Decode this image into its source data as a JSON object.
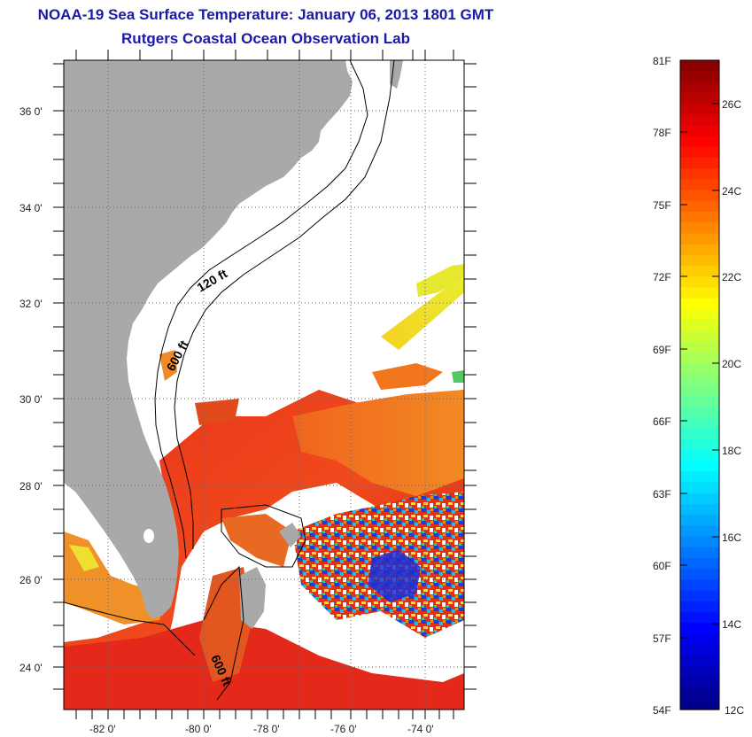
{
  "title": {
    "line1": "NOAA-19 Sea Surface Temperature:  January 06, 2013 1801 GMT",
    "line2": "Rutgers Coastal Ocean Observation Lab"
  },
  "map": {
    "lat_ticks": [
      "36 0'",
      "34 0'",
      "32 0'",
      "30 0'",
      "28 0'",
      "26 0'",
      "24 0'"
    ],
    "lon_ticks": [
      "-82 0'",
      "-80 0'",
      "-78 0'",
      "-76 0'",
      "-74 0'"
    ],
    "contour_labels": [
      "120 ft",
      "600 ft",
      "600 ft"
    ],
    "colors": {
      "land": "#a9a9a9",
      "cloud": "#ffffff",
      "frame": "#000000"
    }
  },
  "colorbar": {
    "fahrenheit": [
      "81F",
      "78F",
      "75F",
      "72F",
      "69F",
      "66F",
      "63F",
      "60F",
      "57F",
      "54F"
    ],
    "celsius": [
      "26C",
      "24C",
      "22C",
      "20C",
      "18C",
      "16C",
      "14C",
      "12C"
    ],
    "range_f": [
      54,
      81
    ],
    "range_c": [
      12,
      27
    ]
  }
}
